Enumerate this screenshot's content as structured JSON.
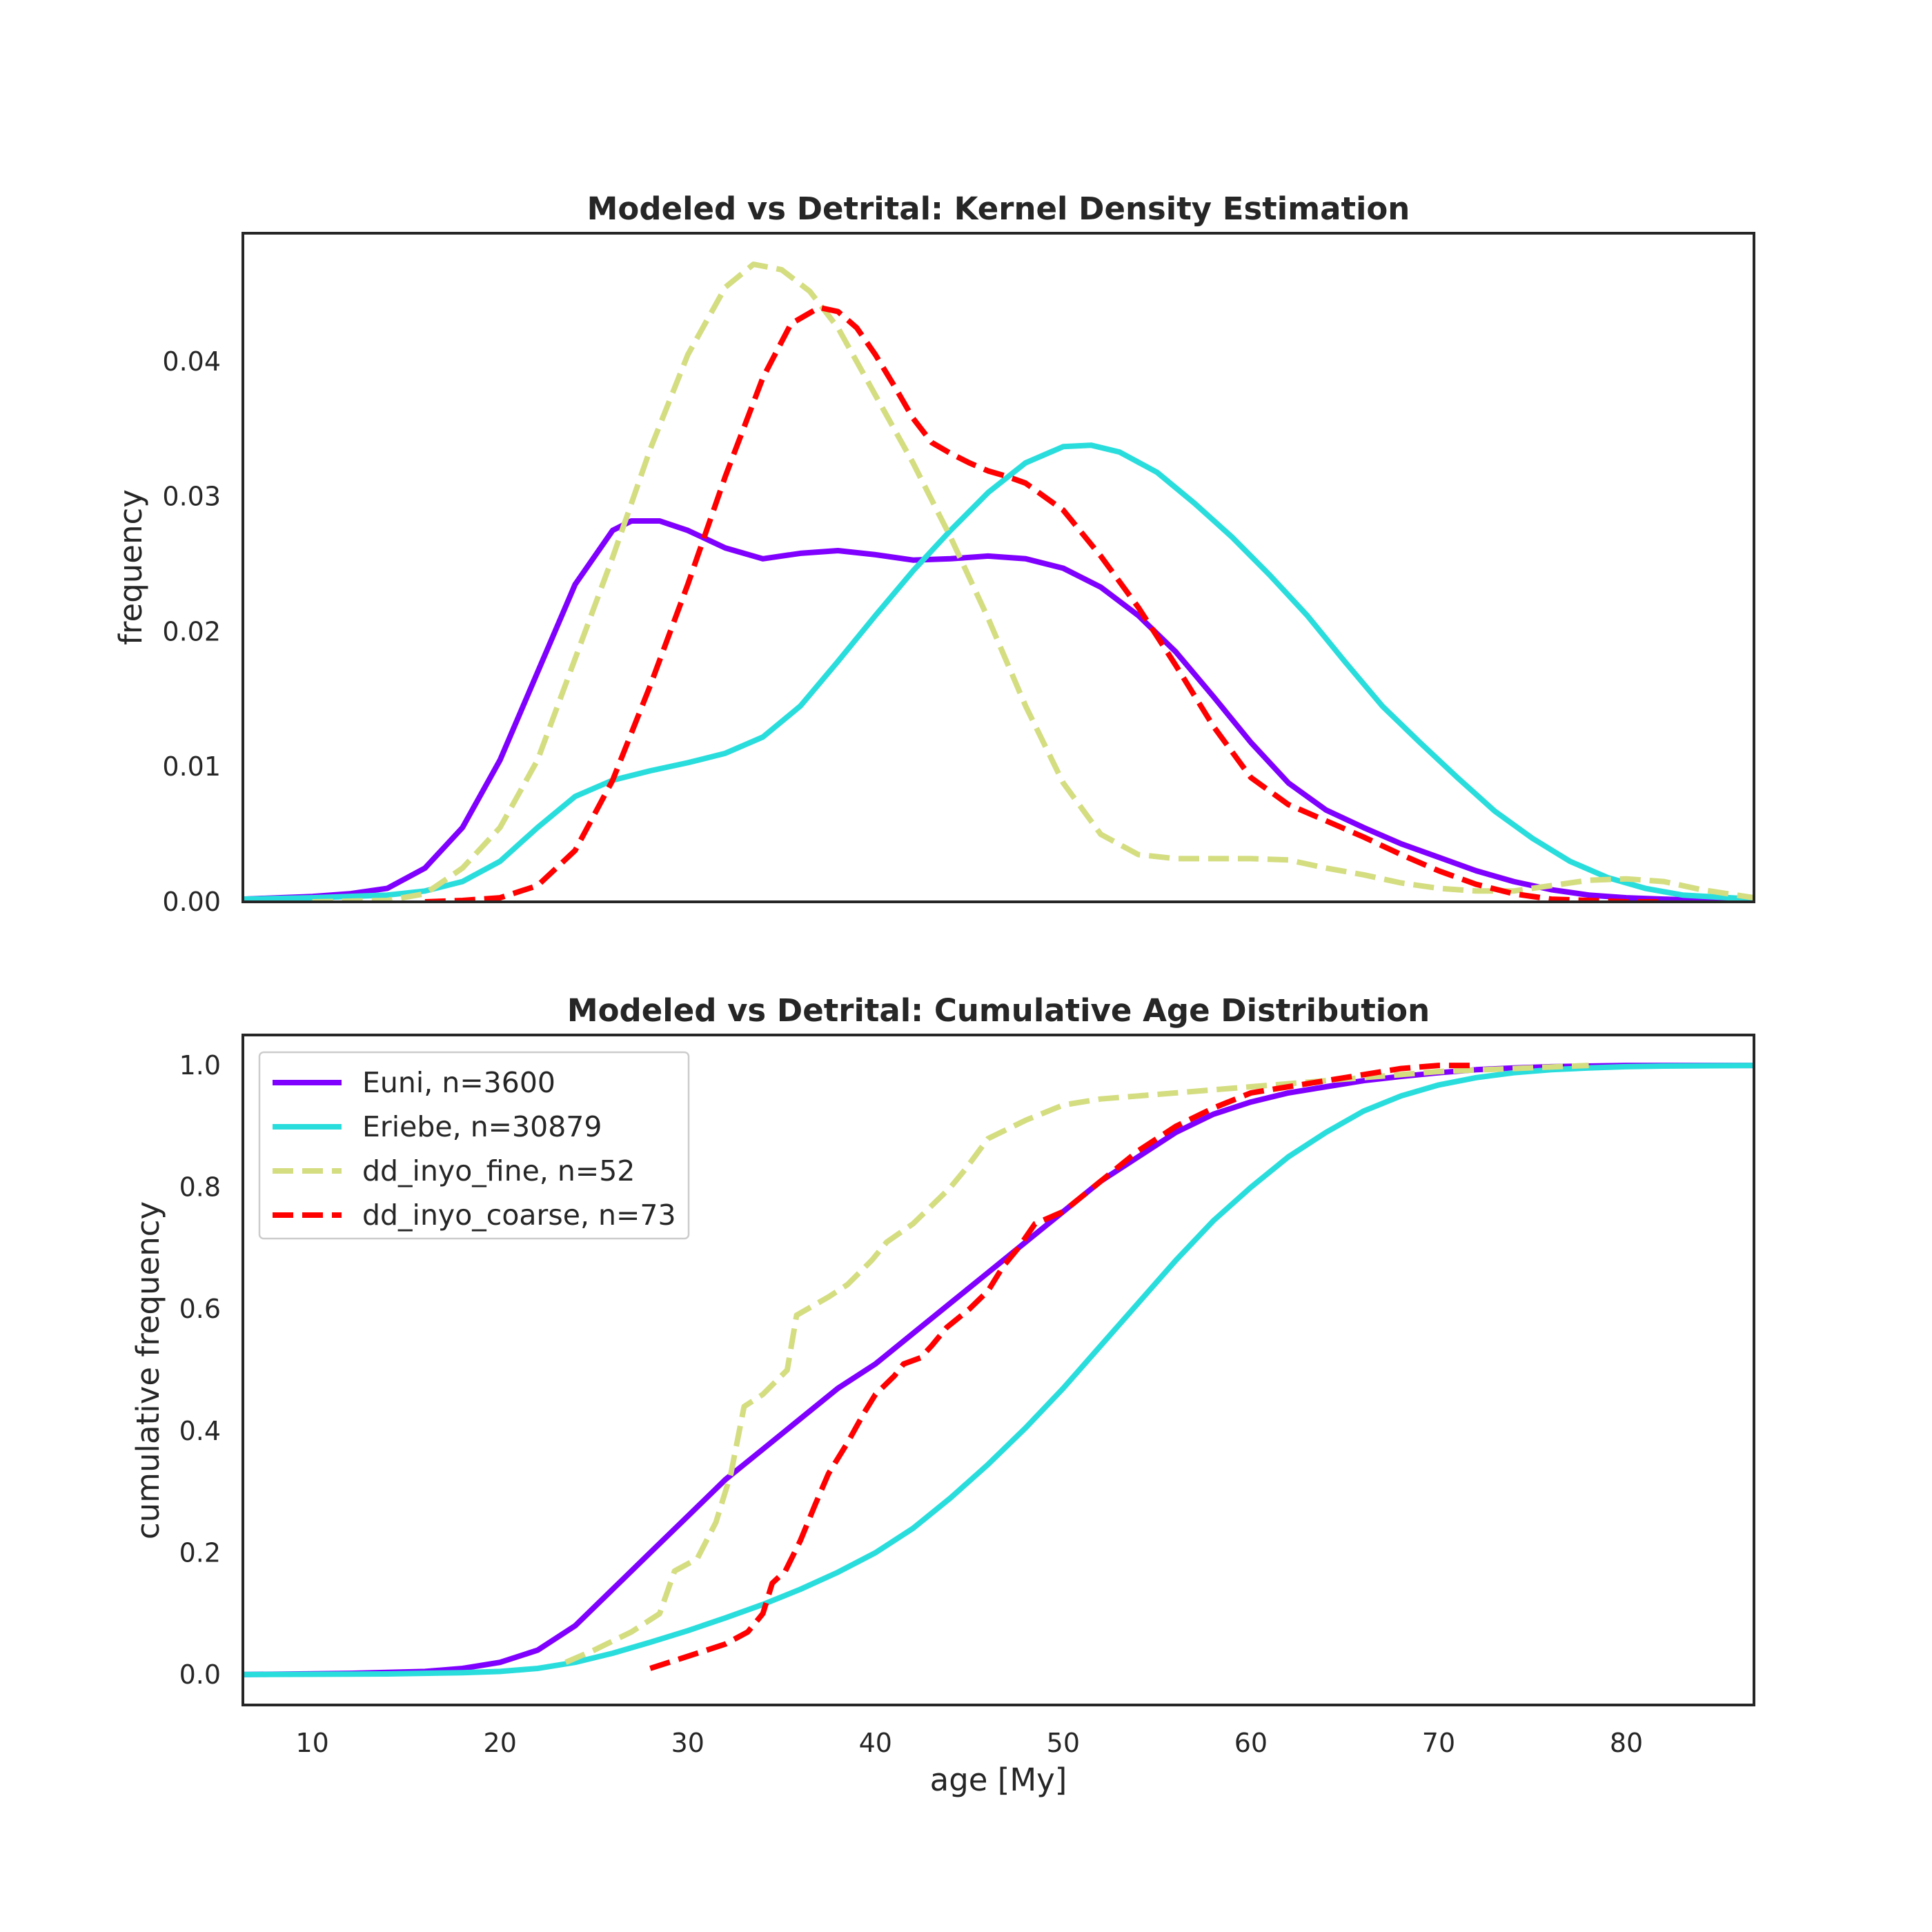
{
  "chart_data": [
    {
      "type": "line",
      "title": "Modeled vs Detrital: Kernel Density Estimation",
      "xlabel": "",
      "ylabel": "frequency",
      "xlim": [
        6.3,
        86.8
      ],
      "ylim": [
        0.0,
        0.0495
      ],
      "grid": false,
      "yticks": [
        0.0,
        0.01,
        0.02,
        0.03,
        0.04
      ],
      "ytick_labels": [
        "0.00",
        "0.01",
        "0.02",
        "0.03",
        "0.04"
      ],
      "series": [
        {
          "name": "Euni, n=3600",
          "color": "#8000ff",
          "dash": "solid",
          "x": [
            6.3,
            10,
            12,
            14,
            16,
            18,
            20,
            22,
            24,
            26,
            27,
            28.5,
            30,
            32,
            34,
            36,
            38,
            40,
            42,
            44,
            46,
            48,
            50,
            52,
            54,
            56,
            58,
            60,
            62,
            64,
            66,
            68,
            70,
            72,
            74,
            76,
            78,
            80,
            82,
            84,
            86.8
          ],
          "y": [
            0.0002,
            0.0004,
            0.0006,
            0.001,
            0.0025,
            0.0055,
            0.0105,
            0.017,
            0.0235,
            0.0275,
            0.0282,
            0.0282,
            0.0275,
            0.0262,
            0.0254,
            0.0258,
            0.026,
            0.0257,
            0.0253,
            0.0254,
            0.0256,
            0.0254,
            0.0247,
            0.0233,
            0.0212,
            0.0185,
            0.0152,
            0.0118,
            0.0088,
            0.0068,
            0.0055,
            0.0043,
            0.0033,
            0.0023,
            0.0015,
            0.0009,
            0.0005,
            0.0003,
            0.0002,
            0.0001,
            0.0
          ]
        },
        {
          "name": "Eriebe, n=30879",
          "color": "#2adddd",
          "dash": "solid",
          "x": [
            6.3,
            10,
            14,
            16,
            18,
            20,
            22,
            24,
            26,
            28,
            30,
            32,
            34,
            36,
            38,
            40,
            42,
            44,
            46,
            48,
            50,
            51.5,
            53,
            55,
            57,
            59,
            61,
            63,
            65,
            67,
            69,
            71,
            73,
            75,
            77,
            79,
            81,
            83,
            86.8
          ],
          "y": [
            0.0002,
            0.0003,
            0.0005,
            0.0008,
            0.0015,
            0.003,
            0.0055,
            0.0078,
            0.009,
            0.0097,
            0.0103,
            0.011,
            0.0122,
            0.0145,
            0.0178,
            0.0212,
            0.0245,
            0.0275,
            0.0303,
            0.0325,
            0.0337,
            0.0338,
            0.0333,
            0.0318,
            0.0295,
            0.027,
            0.0242,
            0.0212,
            0.0178,
            0.0145,
            0.0118,
            0.0092,
            0.0067,
            0.0047,
            0.003,
            0.0018,
            0.001,
            0.0005,
            0.0002
          ]
        },
        {
          "name": "dd_inyo_fine, n=52",
          "color": "#d4dd80",
          "dash": "dashed",
          "x": [
            10,
            14,
            16,
            18,
            20,
            22,
            24,
            26,
            28,
            30,
            32,
            33.5,
            35,
            36.5,
            38,
            40,
            42,
            44,
            46,
            48,
            50,
            52,
            54,
            56,
            58,
            60,
            62,
            64,
            66,
            68,
            70,
            72,
            74,
            76,
            78,
            80,
            82,
            84,
            86.8
          ],
          "y": [
            0.0,
            0.0001,
            0.0006,
            0.0025,
            0.0055,
            0.0105,
            0.018,
            0.0255,
            0.0335,
            0.0405,
            0.0455,
            0.0472,
            0.0468,
            0.0452,
            0.0425,
            0.0375,
            0.0325,
            0.027,
            0.021,
            0.0145,
            0.0088,
            0.005,
            0.0035,
            0.0032,
            0.0032,
            0.0032,
            0.0031,
            0.0025,
            0.002,
            0.0014,
            0.001,
            0.0008,
            0.0008,
            0.0012,
            0.0016,
            0.0017,
            0.0015,
            0.0009,
            0.0003
          ]
        },
        {
          "name": "dd_inyo_coarse, n=73",
          "color": "#ff0000",
          "dash": "dashed",
          "x": [
            16,
            18,
            20,
            22,
            24,
            26,
            28,
            30,
            32,
            34,
            35.5,
            37,
            38,
            39,
            40,
            41,
            42,
            43,
            44,
            45,
            46,
            47,
            48,
            50,
            52,
            54,
            56,
            58,
            60,
            62,
            64,
            66,
            68,
            70,
            72,
            74,
            76,
            78,
            80,
            82
          ],
          "y": [
            0.0,
            0.0001,
            0.0003,
            0.0012,
            0.0038,
            0.009,
            0.016,
            0.0235,
            0.0315,
            0.0388,
            0.0428,
            0.044,
            0.0437,
            0.0425,
            0.0405,
            0.0382,
            0.0358,
            0.034,
            0.0332,
            0.0325,
            0.0319,
            0.0315,
            0.031,
            0.029,
            0.0256,
            0.0218,
            0.0175,
            0.013,
            0.0092,
            0.0072,
            0.006,
            0.0048,
            0.0035,
            0.0023,
            0.0013,
            0.0006,
            0.0002,
            0.0001,
            0.0,
            0.0
          ]
        }
      ]
    },
    {
      "type": "line",
      "title": "Modeled vs Detrital: Cumulative Age Distribution",
      "xlabel": "age [My]",
      "ylabel": "cumulative frequency",
      "xlim": [
        6.3,
        86.8
      ],
      "ylim": [
        -0.05,
        1.05
      ],
      "grid": false,
      "legend_position": "upper-left",
      "xticks": [
        10,
        20,
        30,
        40,
        50,
        60,
        70,
        80
      ],
      "xtick_labels": [
        "10",
        "20",
        "30",
        "40",
        "50",
        "60",
        "70",
        "80"
      ],
      "yticks": [
        0.0,
        0.2,
        0.4,
        0.6,
        0.8,
        1.0
      ],
      "ytick_labels": [
        "0.0",
        "0.2",
        "0.4",
        "0.6",
        "0.8",
        "1.0"
      ],
      "series": [
        {
          "name": "Euni, n=3600",
          "color": "#8000ff",
          "dash": "solid",
          "x": [
            6.3,
            12,
            16,
            18,
            20,
            22,
            24,
            26,
            28,
            30,
            32,
            34,
            36,
            38,
            40,
            42,
            44,
            46,
            48,
            50,
            52,
            54,
            56,
            58,
            60,
            62,
            64,
            66,
            68,
            70,
            72,
            74,
            76,
            80,
            86.8
          ],
          "y": [
            0.0,
            0.002,
            0.005,
            0.01,
            0.02,
            0.04,
            0.08,
            0.14,
            0.2,
            0.26,
            0.32,
            0.37,
            0.42,
            0.47,
            0.51,
            0.56,
            0.61,
            0.66,
            0.71,
            0.76,
            0.81,
            0.85,
            0.89,
            0.92,
            0.94,
            0.955,
            0.965,
            0.975,
            0.982,
            0.988,
            0.993,
            0.996,
            0.998,
            1.0,
            1.0
          ]
        },
        {
          "name": "Eriebe, n=30879",
          "color": "#2adddd",
          "dash": "solid",
          "x": [
            6.3,
            14,
            18,
            20,
            22,
            24,
            26,
            28,
            30,
            32,
            34,
            36,
            38,
            40,
            42,
            44,
            46,
            48,
            50,
            52,
            54,
            56,
            58,
            60,
            62,
            64,
            66,
            68,
            70,
            72,
            74,
            76,
            78,
            80,
            82,
            86.8
          ],
          "y": [
            0.0,
            0.001,
            0.003,
            0.005,
            0.01,
            0.02,
            0.035,
            0.053,
            0.072,
            0.093,
            0.115,
            0.14,
            0.168,
            0.2,
            0.24,
            0.29,
            0.345,
            0.405,
            0.47,
            0.54,
            0.61,
            0.68,
            0.745,
            0.8,
            0.85,
            0.89,
            0.925,
            0.95,
            0.968,
            0.98,
            0.988,
            0.993,
            0.996,
            0.998,
            0.999,
            1.0
          ]
        },
        {
          "name": "dd_inyo_fine, n=52",
          "color": "#d4dd80",
          "dash": "dashed",
          "x": [
            23.5,
            25,
            27,
            28.5,
            29.3,
            30.5,
            31.5,
            32.3,
            33,
            34,
            35.3,
            35.8,
            37.5,
            38.5,
            39.8,
            40.6,
            42,
            43,
            44,
            44.8,
            46,
            48,
            50,
            52,
            54,
            56,
            58,
            60,
            62,
            64,
            66,
            70,
            74,
            78
          ],
          "y": [
            0.02,
            0.04,
            0.07,
            0.1,
            0.17,
            0.19,
            0.25,
            0.33,
            0.44,
            0.46,
            0.5,
            0.59,
            0.62,
            0.64,
            0.68,
            0.71,
            0.74,
            0.77,
            0.8,
            0.83,
            0.88,
            0.91,
            0.935,
            0.945,
            0.95,
            0.955,
            0.96,
            0.965,
            0.97,
            0.975,
            0.98,
            0.99,
            0.995,
            1.0
          ]
        },
        {
          "name": "dd_inyo_coarse, n=73",
          "color": "#ff0000",
          "dash": "dashed",
          "x": [
            28,
            30,
            32,
            33.2,
            34,
            34.5,
            35.2,
            36,
            36.8,
            37.5,
            38.5,
            39.4,
            40,
            41,
            41.5,
            42.4,
            43,
            43.8,
            44.2,
            45,
            46,
            46.8,
            47.6,
            48.5,
            50,
            52,
            54,
            56,
            58,
            60,
            62,
            64,
            66,
            68,
            70,
            72
          ],
          "y": [
            0.01,
            0.03,
            0.05,
            0.07,
            0.1,
            0.15,
            0.17,
            0.22,
            0.28,
            0.33,
            0.38,
            0.43,
            0.46,
            0.49,
            0.51,
            0.52,
            0.54,
            0.57,
            0.58,
            0.6,
            0.63,
            0.67,
            0.7,
            0.74,
            0.76,
            0.81,
            0.86,
            0.9,
            0.93,
            0.955,
            0.965,
            0.975,
            0.985,
            0.995,
            1.0,
            1.0
          ]
        }
      ]
    }
  ]
}
